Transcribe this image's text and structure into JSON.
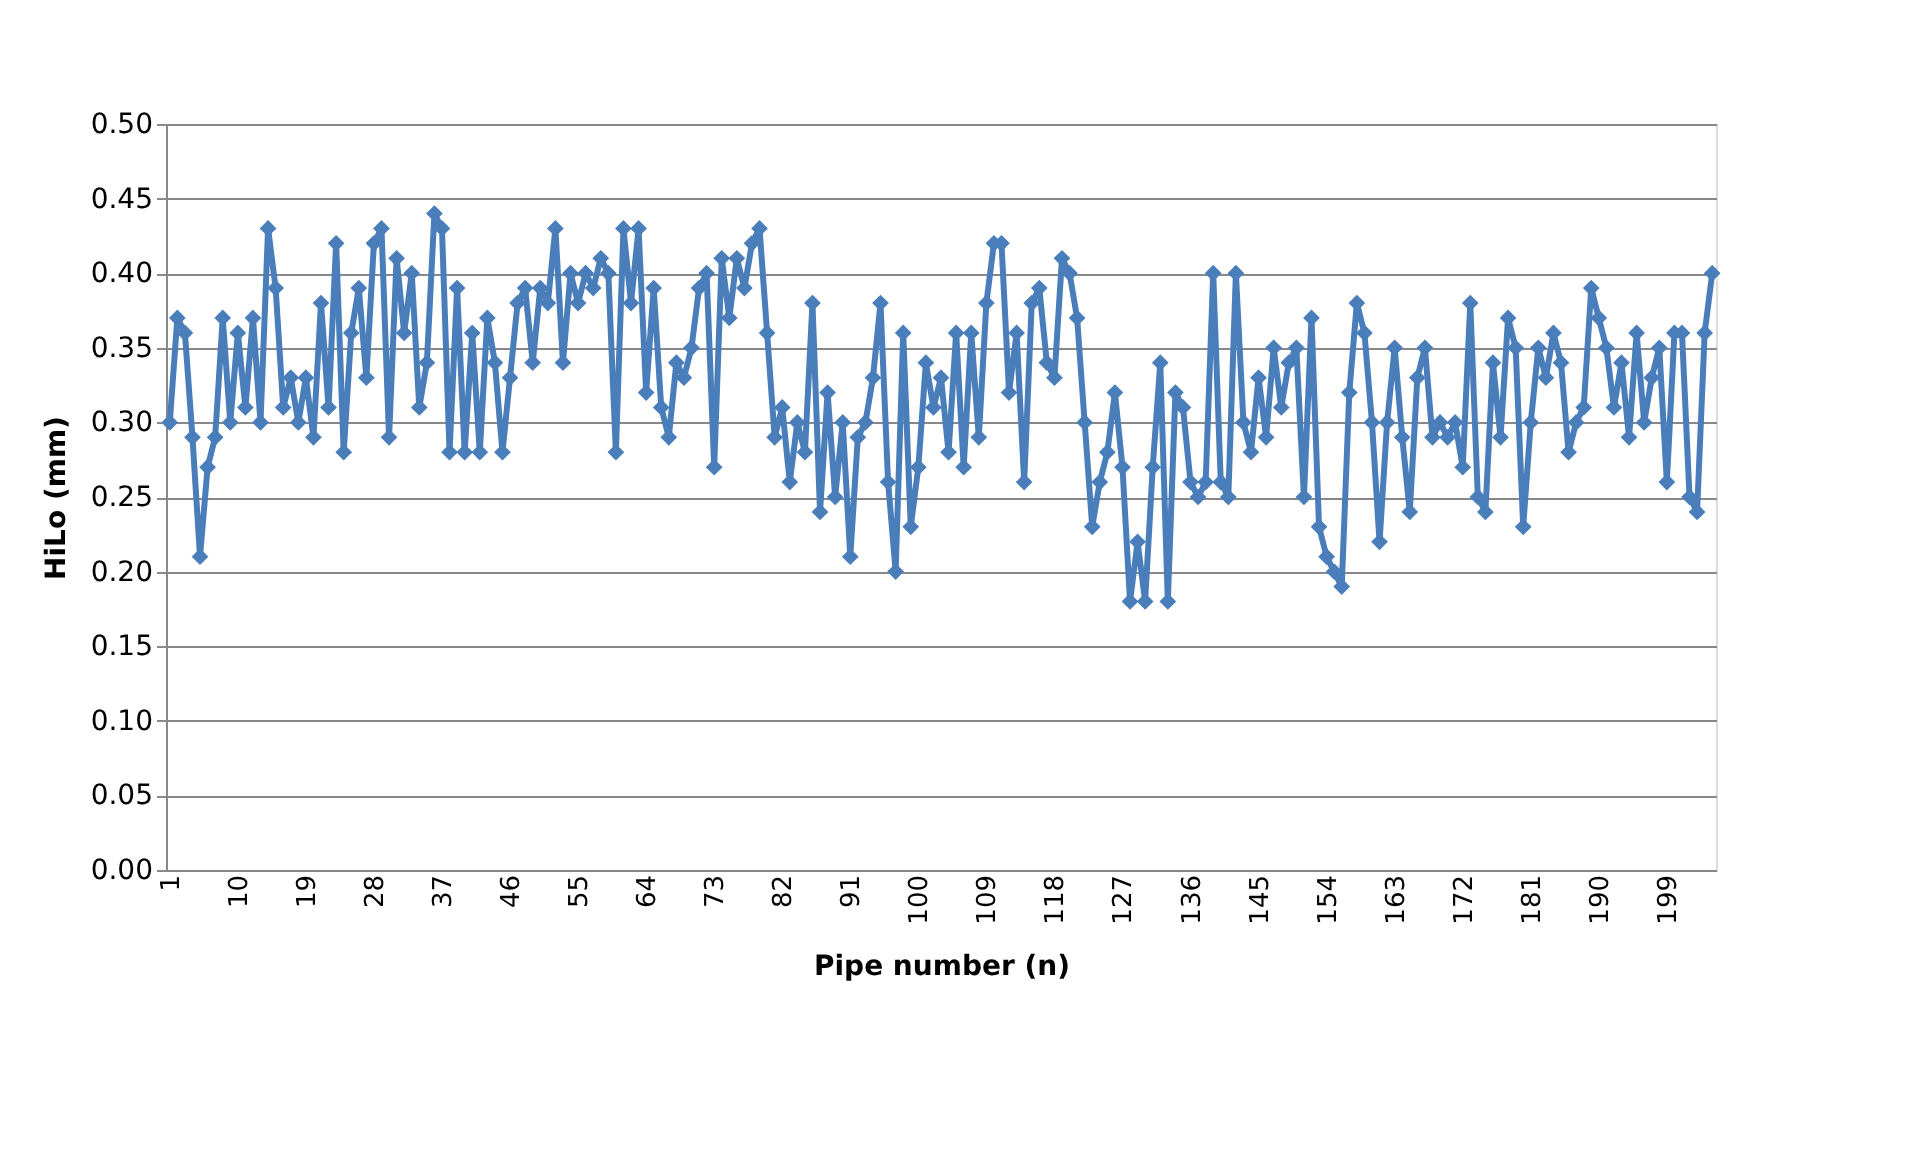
{
  "chart_data": {
    "type": "line",
    "xlabel": "Pipe number (n)",
    "ylabel": "HiLo (mm)",
    "categories": [
      "1",
      null,
      null,
      null,
      null,
      null,
      null,
      null,
      null,
      "10",
      null,
      null,
      null,
      null,
      null,
      null,
      null,
      null,
      "19",
      null,
      null,
      null,
      null,
      null,
      null,
      null,
      null,
      "28",
      null,
      null,
      null,
      null,
      null,
      null,
      null,
      null,
      "37",
      null,
      null,
      null,
      null,
      null,
      null,
      null,
      null,
      "46",
      null,
      null,
      null,
      null,
      null,
      null,
      null,
      null,
      "55",
      null,
      null,
      null,
      null,
      null,
      null,
      null,
      null,
      "64",
      null,
      null,
      null,
      null,
      null,
      null,
      null,
      null,
      "73",
      null,
      null,
      null,
      null,
      null,
      null,
      null,
      null,
      "82",
      null,
      null,
      null,
      null,
      null,
      null,
      null,
      null,
      "91",
      null,
      null,
      null,
      null,
      null,
      null,
      null,
      null,
      "100",
      null,
      null,
      null,
      null,
      null,
      null,
      null,
      null,
      "109",
      null,
      null,
      null,
      null,
      null,
      null,
      null,
      null,
      "118",
      null,
      null,
      null,
      null,
      null,
      null,
      null,
      null,
      "127",
      null,
      null,
      null,
      null,
      null,
      null,
      null,
      null,
      "136",
      null,
      null,
      null,
      null,
      null,
      null,
      null,
      null,
      "145",
      null,
      null,
      null,
      null,
      null,
      null,
      null,
      null,
      "154",
      null,
      null,
      null,
      null,
      null,
      null,
      null,
      null,
      "163",
      null,
      null,
      null,
      null,
      null,
      null,
      null,
      null,
      "172",
      null,
      null,
      null,
      null,
      null,
      null,
      null,
      null,
      "181",
      null,
      null,
      null,
      null,
      null,
      null,
      null,
      null,
      "190",
      null,
      null,
      null,
      null,
      null,
      null,
      null,
      null,
      "199",
      null,
      null,
      null,
      null,
      null,
      null
    ],
    "series": [
      {
        "color": "#4a7ebb",
        "values": [
          0.3,
          0.37,
          0.36,
          0.29,
          0.21,
          0.27,
          0.29,
          0.37,
          0.3,
          0.36,
          0.31,
          0.37,
          0.3,
          0.43,
          0.39,
          0.31,
          0.33,
          0.3,
          0.33,
          0.29,
          0.38,
          0.31,
          0.42,
          0.28,
          0.36,
          0.39,
          0.33,
          0.42,
          0.43,
          0.29,
          0.41,
          0.36,
          0.4,
          0.31,
          0.34,
          0.44,
          0.43,
          0.28,
          0.39,
          0.28,
          0.36,
          0.28,
          0.37,
          0.34,
          0.28,
          0.33,
          0.38,
          0.39,
          0.34,
          0.39,
          0.38,
          0.43,
          0.34,
          0.4,
          0.38,
          0.4,
          0.39,
          0.41,
          0.4,
          0.28,
          0.43,
          0.38,
          0.43,
          0.32,
          0.39,
          0.31,
          0.29,
          0.34,
          0.33,
          0.35,
          0.39,
          0.4,
          0.27,
          0.41,
          0.37,
          0.41,
          0.39,
          0.42,
          0.43,
          0.36,
          0.29,
          0.31,
          0.26,
          0.3,
          0.28,
          0.38,
          0.24,
          0.32,
          0.25,
          0.3,
          0.21,
          0.29,
          0.3,
          0.33,
          0.38,
          0.26,
          0.2,
          0.36,
          0.23,
          0.27,
          0.34,
          0.31,
          0.33,
          0.28,
          0.36,
          0.27,
          0.36,
          0.29,
          0.38,
          0.42,
          0.42,
          0.32,
          0.36,
          0.26,
          0.38,
          0.39,
          0.34,
          0.33,
          0.41,
          0.4,
          0.37,
          0.3,
          0.23,
          0.26,
          0.28,
          0.32,
          0.27,
          0.18,
          0.22,
          0.18,
          0.27,
          0.34,
          0.18,
          0.32,
          0.31,
          0.26,
          0.25,
          0.26,
          0.4,
          0.26,
          0.25,
          0.4,
          0.3,
          0.28,
          0.33,
          0.29,
          0.35,
          0.31,
          0.34,
          0.35,
          0.25,
          0.37,
          0.23,
          0.21,
          0.2,
          0.19,
          0.32,
          0.38,
          0.36,
          0.3,
          0.22,
          0.3,
          0.35,
          0.29,
          0.24,
          0.33,
          0.35,
          0.29,
          0.3,
          0.29,
          0.3,
          0.27,
          0.38,
          0.25,
          0.24,
          0.34,
          0.29,
          0.37,
          0.35,
          0.23,
          0.3,
          0.35,
          0.33,
          0.36,
          0.34,
          0.28,
          0.3,
          0.31,
          0.39,
          0.37,
          0.35,
          0.31,
          0.34,
          0.29,
          0.36,
          0.3,
          0.33,
          0.35,
          0.26,
          0.36,
          0.36,
          0.25,
          0.24,
          0.36,
          0.4
        ]
      }
    ],
    "ylim": [
      0,
      0.5
    ],
    "yticks": [
      {
        "value": 0,
        "label": "0.00"
      },
      {
        "value": 0.05,
        "label": "0.05"
      },
      {
        "value": 0.1,
        "label": "0.10"
      },
      {
        "value": 0.15,
        "label": "0.15"
      },
      {
        "value": 0.2,
        "label": "0.20"
      },
      {
        "value": 0.25,
        "label": "0.25"
      },
      {
        "value": 0.3,
        "label": "0.30"
      },
      {
        "value": 0.35,
        "label": "0.35"
      },
      {
        "value": 0.4,
        "label": "0.40"
      },
      {
        "value": 0.45,
        "label": "0.45"
      },
      {
        "value": 0.5,
        "label": "0.50"
      }
    ],
    "grid": "y",
    "marker": "diamond",
    "line_style": "solid"
  }
}
